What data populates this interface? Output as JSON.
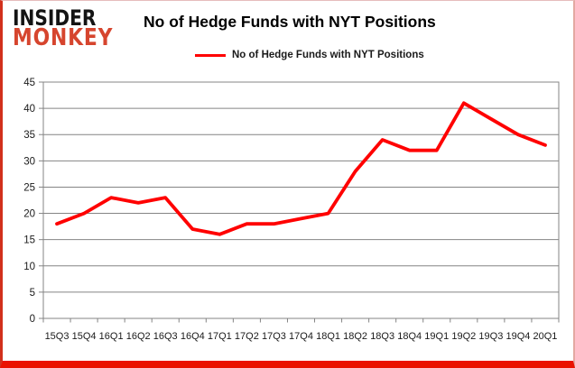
{
  "logo": {
    "line1": "INSIDER",
    "line2": "MONKEY"
  },
  "header": {
    "title": "No of Hedge Funds with NYT Positions"
  },
  "legend": {
    "label": "No of Hedge Funds with NYT Positions"
  },
  "colors": {
    "series": "#ff0000",
    "grid": "#848484",
    "axis_text": "#1a1a1a",
    "logo_accent": "#d6452e",
    "page_border_bottom": "#ea1200"
  },
  "chart_data": {
    "type": "line",
    "title": "No of Hedge Funds with NYT Positions",
    "categories": [
      "15Q3",
      "15Q4",
      "16Q1",
      "16Q2",
      "16Q3",
      "16Q4",
      "17Q1",
      "17Q2",
      "17Q3",
      "17Q4",
      "18Q1",
      "18Q2",
      "18Q3",
      "18Q4",
      "19Q1",
      "19Q2",
      "19Q3",
      "19Q4",
      "20Q1"
    ],
    "series": [
      {
        "name": "No of Hedge Funds with NYT Positions",
        "color": "#ff0000",
        "values": [
          18,
          20,
          23,
          22,
          23,
          17,
          16,
          18,
          18,
          19,
          20,
          28,
          34,
          32,
          32,
          41,
          38,
          35,
          33
        ]
      }
    ],
    "xlabel": "",
    "ylabel": "",
    "ylim": [
      0,
      45
    ],
    "yticks": [
      0,
      5,
      10,
      15,
      20,
      25,
      30,
      35,
      40,
      45
    ],
    "grid": true,
    "legend_position": "top"
  }
}
